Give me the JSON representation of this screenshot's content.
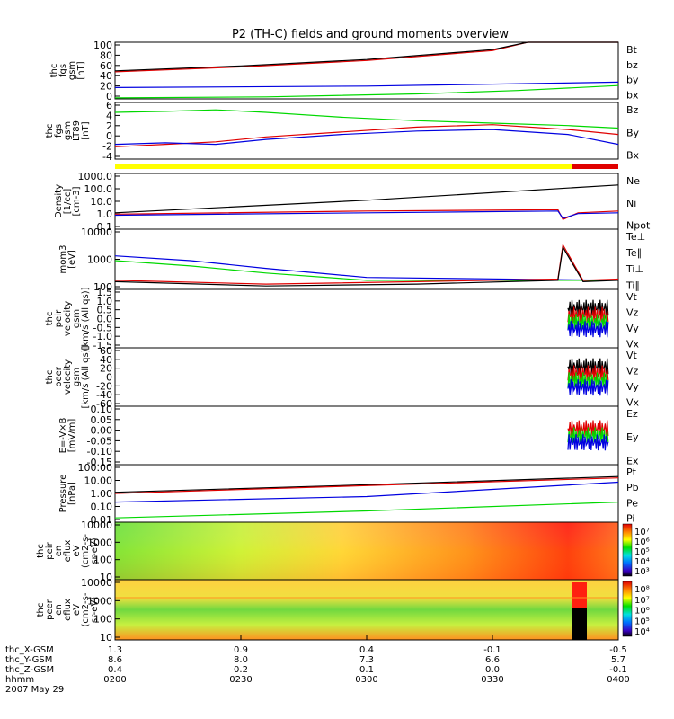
{
  "title": "P2 (TH-C) fields and ground moments overview",
  "colors": {
    "black": "#000000",
    "red": "#e00000",
    "green": "#00d800",
    "blue": "#0000e0",
    "yellow": "#ffff00",
    "bar_red": "#e00000"
  },
  "chart_data": [
    {
      "type": "line",
      "ylabel": [
        "thc",
        "fgs",
        "gsm",
        "[nT]"
      ],
      "yticks": [
        "100",
        "80",
        "60",
        "40",
        "20",
        "0"
      ],
      "ylim": [
        -10,
        105
      ],
      "legend": [
        {
          "name": "Bt",
          "color": "black"
        },
        {
          "name": "bz",
          "color": "red"
        },
        {
          "name": "by",
          "color": "green"
        },
        {
          "name": "bx",
          "color": "blue"
        }
      ],
      "series": [
        {
          "name": "bz",
          "color": "red",
          "x": [
            0,
            0.25,
            0.5,
            0.75,
            0.82,
            1
          ],
          "y": [
            45,
            55,
            68,
            88,
            105,
            105
          ]
        },
        {
          "name": "Bt",
          "color": "black",
          "x": [
            0,
            0.25,
            0.5,
            0.75,
            0.82,
            1
          ],
          "y": [
            47,
            57,
            70,
            90,
            106,
            106
          ]
        },
        {
          "name": "bx",
          "color": "blue",
          "x": [
            0,
            0.5,
            1
          ],
          "y": [
            13,
            16,
            24
          ]
        },
        {
          "name": "by",
          "color": "green",
          "x": [
            0,
            0.3,
            0.6,
            0.8,
            1
          ],
          "y": [
            -8,
            -6,
            0,
            7,
            17
          ]
        }
      ]
    },
    {
      "type": "line",
      "ylabel": [
        "thc",
        "fgs",
        "gsm",
        "LT89",
        "[nT]"
      ],
      "yticks": [
        "6",
        "4",
        "2",
        "0",
        "-2",
        "-4"
      ],
      "ylim": [
        -4.5,
        7
      ],
      "legend": [
        {
          "name": "Bz",
          "color": "red"
        },
        {
          "name": "By",
          "color": "green"
        },
        {
          "name": "Bx",
          "color": "blue"
        }
      ],
      "series": [
        {
          "name": "By",
          "color": "green",
          "x": [
            0,
            0.1,
            0.2,
            0.3,
            0.45,
            0.6,
            0.75,
            0.9,
            1
          ],
          "y": [
            5,
            5.2,
            5.5,
            5,
            4,
            3.3,
            2.8,
            2.3,
            1.8
          ]
        },
        {
          "name": "Bz",
          "color": "red",
          "x": [
            0,
            0.1,
            0.2,
            0.3,
            0.45,
            0.6,
            0.75,
            0.9,
            1
          ],
          "y": [
            -2,
            -1.5,
            -1,
            0,
            1,
            2,
            2.5,
            1.5,
            0.5
          ]
        },
        {
          "name": "Bx",
          "color": "blue",
          "x": [
            0,
            0.1,
            0.2,
            0.3,
            0.45,
            0.6,
            0.75,
            0.9,
            1
          ],
          "y": [
            -1.5,
            -1.2,
            -1.5,
            -0.5,
            0.5,
            1.2,
            1.5,
            0.5,
            -1.5
          ]
        }
      ]
    },
    {
      "type": "line",
      "ylabel": [
        "Density",
        "[1/cc]",
        "[cm-3]"
      ],
      "log": true,
      "yticks": [
        "1000.0",
        "100.0",
        "10.0",
        "1.0",
        "0.1"
      ],
      "ylim": [
        0.1,
        1000
      ],
      "legend": [
        {
          "name": "Ne",
          "color": "red"
        },
        {
          "name": "Ni",
          "color": "black"
        },
        {
          "name": "Npot",
          "color": "blue"
        }
      ],
      "series": [
        {
          "name": "Ni",
          "color": "black",
          "x": [
            0,
            0.5,
            1
          ],
          "y": [
            1.5,
            12,
            150
          ]
        },
        {
          "name": "Ne",
          "color": "red",
          "x": [
            0,
            0.5,
            0.88,
            0.89,
            0.92,
            1
          ],
          "y": [
            1.2,
            2,
            2.5,
            0.5,
            1.5,
            2
          ]
        },
        {
          "name": "Npot",
          "color": "blue",
          "x": [
            0,
            0.5,
            0.88,
            0.89,
            0.92,
            1
          ],
          "y": [
            1,
            1.5,
            2,
            0.6,
            1.3,
            1.5
          ]
        }
      ]
    },
    {
      "type": "line",
      "ylabel": [
        "mom3",
        "[eV]"
      ],
      "log": true,
      "yticks": [
        "10000",
        "1000",
        "100"
      ],
      "ylim": [
        100,
        10000
      ],
      "legend": [
        {
          "name": "Te⊥",
          "color": "red"
        },
        {
          "name": "Te∥",
          "color": "black"
        },
        {
          "name": "Ti⊥",
          "color": "blue"
        },
        {
          "name": "Ti∥",
          "color": "green"
        }
      ],
      "series": [
        {
          "name": "Ti⊥",
          "color": "blue",
          "x": [
            0,
            0.15,
            0.3,
            0.5,
            1
          ],
          "y": [
            1300,
            900,
            500,
            250,
            200
          ]
        },
        {
          "name": "Ti∥",
          "color": "green",
          "x": [
            0,
            0.15,
            0.3,
            0.5,
            1
          ],
          "y": [
            900,
            600,
            350,
            200,
            200
          ]
        },
        {
          "name": "Te⊥",
          "color": "red",
          "x": [
            0,
            0.3,
            0.6,
            0.88,
            0.89,
            0.93,
            1
          ],
          "y": [
            200,
            150,
            180,
            220,
            3000,
            200,
            220
          ]
        },
        {
          "name": "Te∥",
          "color": "black",
          "x": [
            0,
            0.3,
            0.6,
            0.88,
            0.89,
            0.93,
            1
          ],
          "y": [
            180,
            130,
            150,
            200,
            2500,
            180,
            200
          ]
        }
      ]
    },
    {
      "type": "line",
      "ylabel": [
        "thc",
        "peir",
        "velocity",
        "gsm",
        "[km/s (All qs)]"
      ],
      "yticks": [
        "1.5",
        "1.0",
        "0.5",
        "0.0",
        "-0.5",
        "-1.0",
        "-1.5"
      ],
      "ylim": [
        -1.5,
        1.5
      ],
      "legend": [
        {
          "name": "Vt",
          "color": "black"
        },
        {
          "name": "Vz",
          "color": "red"
        },
        {
          "name": "Vy",
          "color": "green"
        },
        {
          "name": "Vx",
          "color": "blue"
        }
      ],
      "series": [],
      "noise": {
        "x0": 0.9,
        "x1": 0.98,
        "center": 0,
        "amp": 0.6
      }
    },
    {
      "type": "line",
      "ylabel": [
        "thc",
        "peer",
        "velocity",
        "gsm",
        "[km/s (All qs)]"
      ],
      "yticks": [
        "60",
        "40",
        "20",
        "0",
        "-20",
        "-40",
        "-60"
      ],
      "ylim": [
        -60,
        60
      ],
      "legend": [
        {
          "name": "Vt",
          "color": "black"
        },
        {
          "name": "Vz",
          "color": "red"
        },
        {
          "name": "Vy",
          "color": "green"
        },
        {
          "name": "Vx",
          "color": "blue"
        }
      ],
      "series": [],
      "noise": {
        "x0": 0.9,
        "x1": 0.98,
        "center": 0,
        "amp": 40
      }
    },
    {
      "type": "line",
      "ylabel": [
        "E=-V×B",
        "[mV/m]"
      ],
      "yticks": [
        "0.10",
        "0.05",
        "0.00",
        "-0.05",
        "-0.10",
        "-0.15"
      ],
      "ylim": [
        -0.15,
        0.1
      ],
      "legend": [
        {
          "name": "Ez",
          "color": "red"
        },
        {
          "name": "Ey",
          "color": "green"
        },
        {
          "name": "Ex",
          "color": "blue"
        }
      ],
      "series": [],
      "noise": {
        "x0": 0.9,
        "x1": 0.98,
        "center": 0,
        "amp": 0.05
      }
    },
    {
      "type": "line",
      "ylabel": [
        "Pressure",
        "[nPa]"
      ],
      "log": true,
      "yticks": [
        "100.00",
        "10.00",
        "1.00",
        "0.10",
        "0.01"
      ],
      "ylim": [
        0.01,
        100
      ],
      "legend": [
        {
          "name": "Pt",
          "color": "black"
        },
        {
          "name": "Pb",
          "color": "red"
        },
        {
          "name": "Pe",
          "color": "green"
        },
        {
          "name": "Pi",
          "color": "blue"
        }
      ],
      "series": [
        {
          "name": "Pt",
          "color": "black",
          "x": [
            0,
            0.5,
            1
          ],
          "y": [
            1.2,
            4,
            15
          ]
        },
        {
          "name": "Pb",
          "color": "red",
          "x": [
            0,
            0.5,
            1
          ],
          "y": [
            1.0,
            3.5,
            12
          ]
        },
        {
          "name": "Pi",
          "color": "blue",
          "x": [
            0,
            0.5,
            1
          ],
          "y": [
            0.25,
            0.6,
            6
          ]
        },
        {
          "name": "Pe",
          "color": "green",
          "x": [
            0,
            0.5,
            1
          ],
          "y": [
            0.02,
            0.06,
            0.25
          ]
        }
      ]
    },
    {
      "type": "heatmap",
      "ylabel": [
        "thc",
        "peir",
        "en",
        "eflux",
        "eV",
        "(cm2-s-",
        "sr-eV)"
      ],
      "yticks": [
        "10000",
        "1000",
        "100",
        "10"
      ],
      "colorbar_ticks": [
        "10⁷",
        "10⁶",
        "10⁵",
        "10⁴",
        "10³"
      ]
    },
    {
      "type": "heatmap",
      "ylabel": [
        "thc",
        "peer",
        "en",
        "eflux",
        "eV",
        "(cm2-s-",
        "sr-eV)"
      ],
      "yticks": [
        "10000",
        "1000",
        "100",
        "10"
      ],
      "colorbar_ticks": [
        "10⁸",
        "10⁷",
        "10⁶",
        "10⁵",
        "10⁴"
      ]
    }
  ],
  "xaxis": {
    "row_labels": [
      "thc_X-GSM",
      "thc_Y-GSM",
      "thc_Z-GSM",
      "hhmm",
      "2007 May 29"
    ],
    "x_gsm": [
      "1.3",
      "0.9",
      "0.4",
      "-0.1",
      "-0.5"
    ],
    "y_gsm": [
      "8.6",
      "8.0",
      "7.3",
      "6.6",
      "5.7"
    ],
    "z_gsm": [
      "0.4",
      "0.2",
      "0.1",
      "0.0",
      "-0.1"
    ],
    "hhmm": [
      "0200",
      "0230",
      "0300",
      "0330",
      "0400"
    ]
  }
}
